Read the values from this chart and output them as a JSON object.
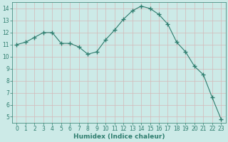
{
  "x": [
    0,
    1,
    2,
    3,
    4,
    5,
    6,
    7,
    8,
    9,
    10,
    11,
    12,
    13,
    14,
    15,
    16,
    17,
    18,
    19,
    20,
    21,
    22,
    23
  ],
  "y": [
    11.0,
    11.2,
    11.6,
    12.0,
    12.0,
    11.1,
    11.1,
    10.8,
    10.2,
    10.4,
    11.4,
    12.2,
    13.1,
    13.8,
    14.2,
    14.0,
    13.5,
    12.7,
    11.2,
    10.4,
    9.2,
    8.5,
    6.6,
    4.8
  ],
  "line_color": "#2e7d6e",
  "marker": "+",
  "marker_size": 4,
  "marker_lw": 1.0,
  "bg_color": "#cceae7",
  "grid_color_major": "#b8d8d4",
  "grid_color_minor": "#daecea",
  "xlabel": "Humidex (Indice chaleur)",
  "ylim": [
    4.5,
    14.5
  ],
  "xlim": [
    -0.5,
    23.5
  ],
  "yticks": [
    5,
    6,
    7,
    8,
    9,
    10,
    11,
    12,
    13,
    14
  ],
  "xticks": [
    0,
    1,
    2,
    3,
    4,
    5,
    6,
    7,
    8,
    9,
    10,
    11,
    12,
    13,
    14,
    15,
    16,
    17,
    18,
    19,
    20,
    21,
    22,
    23
  ],
  "tick_fontsize": 5.5,
  "label_fontsize": 6.5,
  "tick_color": "#2e7d6e",
  "spine_color": "#2e7d6e"
}
